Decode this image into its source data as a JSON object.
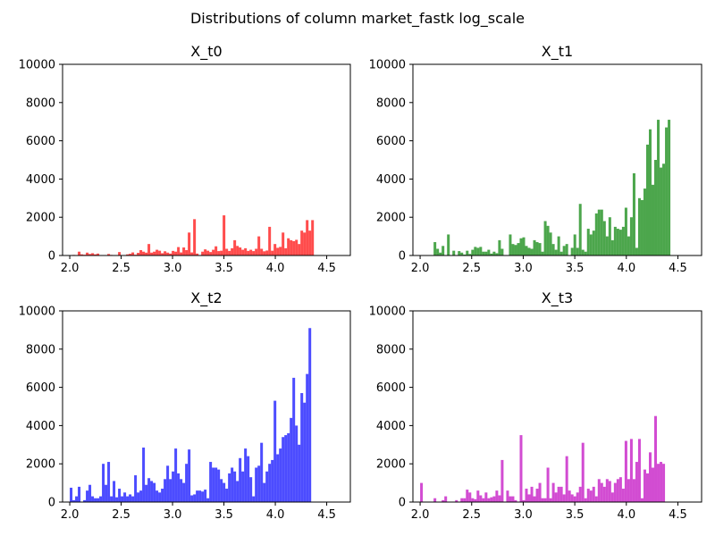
{
  "figure": {
    "suptitle": "Distributions of column market_fastk log_scale"
  },
  "chart_data": [
    {
      "type": "bar",
      "title": "X_t0",
      "color": "#ff0000",
      "xlim": [
        1.93,
        4.73
      ],
      "ylim": [
        0,
        10000
      ],
      "xticks": [
        2.0,
        2.5,
        3.0,
        3.5,
        4.0,
        4.5
      ],
      "xtick_labels": [
        "2.0",
        "2.5",
        "3.0",
        "3.5",
        "4.0",
        "4.5"
      ],
      "yticks": [
        0,
        2000,
        4000,
        6000,
        8000,
        10000
      ],
      "ytick_labels": [
        "0",
        "2000",
        "4000",
        "6000",
        "8000",
        "10000"
      ],
      "bin_start": 2.0,
      "bin_width": 0.0261,
      "values": [
        10,
        30,
        0,
        200,
        60,
        40,
        150,
        80,
        120,
        60,
        100,
        0,
        0,
        20,
        80,
        30,
        20,
        0,
        180,
        20,
        20,
        60,
        90,
        160,
        40,
        140,
        280,
        200,
        150,
        600,
        150,
        200,
        300,
        250,
        120,
        220,
        150,
        100,
        240,
        200,
        440,
        160,
        420,
        280,
        1200,
        160,
        1900,
        100,
        0,
        200,
        320,
        250,
        180,
        300,
        480,
        230,
        250,
        2100,
        350,
        240,
        380,
        800,
        500,
        420,
        300,
        380,
        240,
        300,
        230,
        350,
        1000,
        350,
        220,
        260,
        1500,
        250,
        600,
        400,
        450,
        1200,
        380,
        900,
        800,
        750,
        820,
        600,
        1300,
        1200,
        1850,
        1300,
        1850
      ]
    },
    {
      "type": "bar",
      "title": "X_t1",
      "color": "#008000",
      "xlim": [
        1.93,
        4.73
      ],
      "ylim": [
        0,
        10000
      ],
      "xticks": [
        2.0,
        2.5,
        3.0,
        3.5,
        4.0,
        4.5
      ],
      "xtick_labels": [
        "2.0",
        "2.5",
        "3.0",
        "3.5",
        "4.0",
        "4.5"
      ],
      "yticks": [
        0,
        2000,
        4000,
        6000,
        8000,
        10000
      ],
      "ytick_labels": [
        "0",
        "2000",
        "4000",
        "6000",
        "8000",
        "10000"
      ],
      "bin_start": 2.0,
      "bin_width": 0.0261,
      "values": [
        0,
        0,
        0,
        0,
        0,
        700,
        350,
        150,
        500,
        0,
        1100,
        0,
        250,
        0,
        230,
        150,
        50,
        250,
        80,
        300,
        450,
        400,
        450,
        200,
        200,
        300,
        100,
        200,
        120,
        800,
        350,
        0,
        0,
        1100,
        600,
        550,
        650,
        900,
        950,
        500,
        400,
        350,
        800,
        700,
        650,
        200,
        1800,
        1550,
        1200,
        600,
        300,
        1000,
        200,
        500,
        600,
        0,
        400,
        1100,
        400,
        2700,
        300,
        200,
        1400,
        1100,
        1300,
        2200,
        2400,
        2400,
        1800,
        1000,
        2000,
        800,
        1500,
        1400,
        1350,
        1500,
        2500,
        1000,
        2000,
        4300,
        400,
        3000,
        2900,
        3500,
        5800,
        6600,
        3700,
        5000,
        7100,
        4600,
        4800,
        6700,
        7100
      ]
    },
    {
      "type": "bar",
      "title": "X_t2",
      "color": "#0000ff",
      "xlim": [
        1.93,
        4.73
      ],
      "ylim": [
        0,
        10000
      ],
      "xticks": [
        2.0,
        2.5,
        3.0,
        3.5,
        4.0,
        4.5
      ],
      "xtick_labels": [
        "2.0",
        "2.5",
        "3.0",
        "3.5",
        "4.0",
        "4.5"
      ],
      "yticks": [
        0,
        2000,
        4000,
        6000,
        8000,
        10000
      ],
      "ytick_labels": [
        "0",
        "2000",
        "4000",
        "6000",
        "8000",
        "10000"
      ],
      "bin_start": 2.0,
      "bin_width": 0.0261,
      "values": [
        750,
        100,
        300,
        800,
        0,
        100,
        600,
        900,
        300,
        200,
        200,
        300,
        2000,
        900,
        2100,
        300,
        1100,
        250,
        700,
        300,
        500,
        300,
        400,
        300,
        1400,
        500,
        600,
        2850,
        900,
        1250,
        1100,
        1000,
        600,
        500,
        700,
        1200,
        1900,
        1200,
        1600,
        2800,
        1500,
        1200,
        1000,
        2000,
        2750,
        350,
        400,
        600,
        600,
        550,
        650,
        200,
        2100,
        1800,
        1800,
        1700,
        1200,
        1000,
        700,
        1500,
        1800,
        1600,
        1100,
        2300,
        1600,
        2800,
        2400,
        1300,
        300,
        1800,
        1900,
        3100,
        1000,
        1600,
        2000,
        2200,
        5300,
        2500,
        2800,
        3400,
        3500,
        3600,
        4400,
        6500,
        4000,
        3000,
        5700,
        5200,
        6700,
        9100
      ]
    },
    {
      "type": "bar",
      "title": "X_t3",
      "color": "#bf00bf",
      "xlim": [
        1.93,
        4.73
      ],
      "ylim": [
        0,
        10000
      ],
      "xticks": [
        2.0,
        2.5,
        3.0,
        3.5,
        4.0,
        4.5
      ],
      "xtick_labels": [
        "2.0",
        "2.5",
        "3.0",
        "3.5",
        "4.0",
        "4.5"
      ],
      "yticks": [
        0,
        2000,
        4000,
        6000,
        8000,
        10000
      ],
      "ytick_labels": [
        "0",
        "2000",
        "4000",
        "6000",
        "8000",
        "10000"
      ],
      "bin_start": 2.0,
      "bin_width": 0.0261,
      "values": [
        1000,
        0,
        0,
        0,
        0,
        200,
        0,
        0,
        100,
        300,
        0,
        0,
        0,
        100,
        0,
        200,
        200,
        650,
        500,
        200,
        150,
        600,
        350,
        200,
        500,
        200,
        250,
        300,
        600,
        350,
        2200,
        0,
        600,
        300,
        300,
        100,
        0,
        3500,
        100,
        700,
        400,
        800,
        300,
        700,
        1000,
        200,
        200,
        1800,
        200,
        1000,
        500,
        800,
        800,
        400,
        2400,
        600,
        400,
        300,
        500,
        800,
        3100,
        200,
        700,
        600,
        800,
        300,
        1200,
        1000,
        800,
        1200,
        1100,
        500,
        1000,
        1200,
        1300,
        700,
        3200,
        1200,
        3300,
        1200,
        2100,
        3300,
        200,
        1700,
        1500,
        2600,
        1800,
        4500,
        2000,
        2100,
        2000
      ]
    }
  ]
}
